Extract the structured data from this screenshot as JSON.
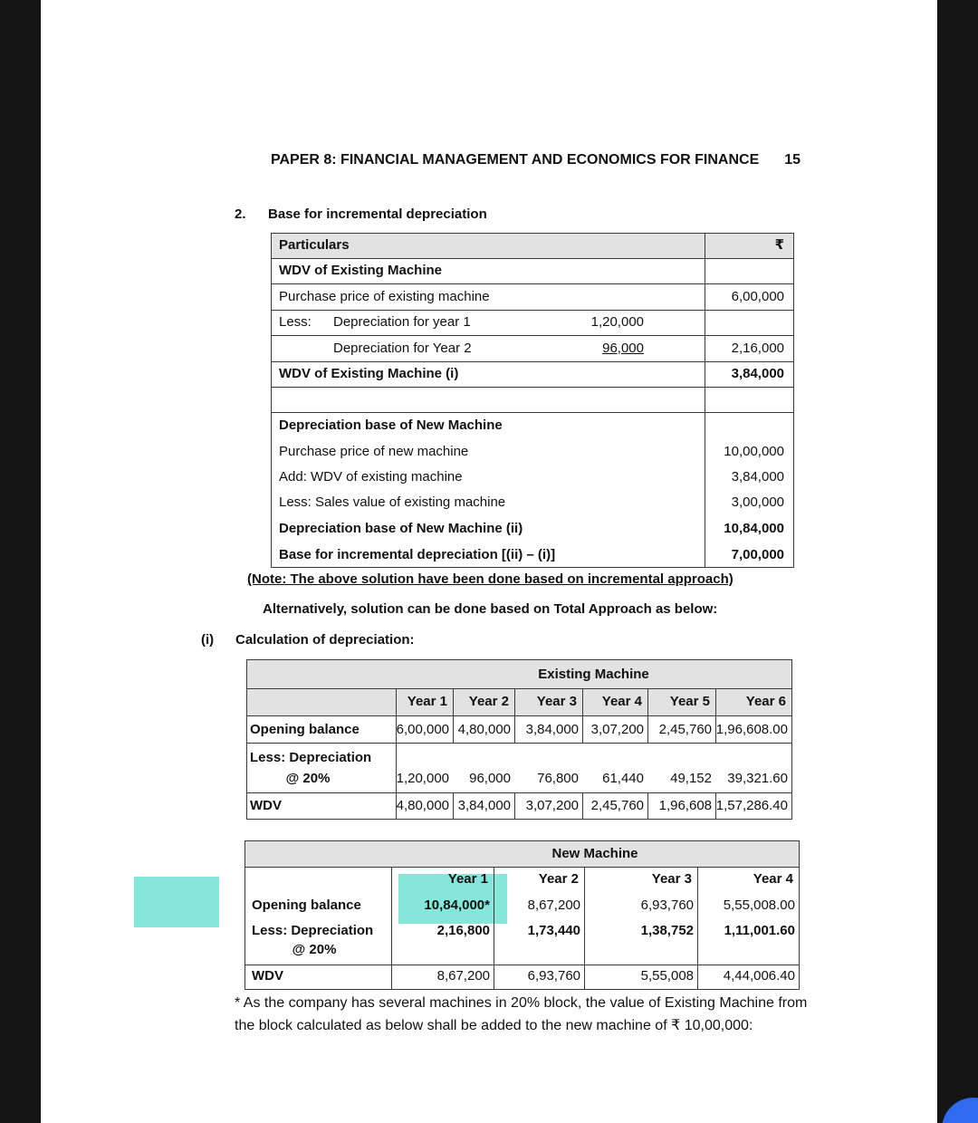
{
  "header": {
    "title": "PAPER 8: FINANCIAL MANAGEMENT AND ECONOMICS FOR FINANCE",
    "page": "15"
  },
  "section2": {
    "number": "2.",
    "heading": "Base for incremental depreciation",
    "table": {
      "header": {
        "label": "Particulars",
        "amount": "₹"
      },
      "rows": [
        {
          "label": "WDV of Existing Machine",
          "bold": true
        },
        {
          "label": "Purchase price of existing machine",
          "amount": "6,00,000"
        },
        {
          "prefix": "Less:",
          "label": "Depreciation for year 1",
          "mid": "1,20,000"
        },
        {
          "label": "Depreciation for Year 2",
          "mid": "96,000",
          "amount": "2,16,000",
          "indent": true,
          "mid_underline": true
        },
        {
          "label": "WDV of Existing Machine (i)",
          "amount": "3,84,000",
          "bold": true
        },
        {
          "label": "Depreciation base of New Machine",
          "bold": true
        },
        {
          "label": "Purchase price of new machine",
          "amount": "10,00,000"
        },
        {
          "label": "Add: WDV of existing machine",
          "amount": "3,84,000"
        },
        {
          "label": "Less: Sales value of existing machine",
          "amount": "3,00,000"
        },
        {
          "label": "Depreciation base of New Machine (ii)",
          "amount": "10,84,000",
          "bold": true
        },
        {
          "label": "Base for incremental depreciation [(ii) – (i)]",
          "amount": "7,00,000",
          "bold": true
        }
      ]
    },
    "note": "(Note: The above solution have been done based on incremental approach)",
    "alternative": "Alternatively, solution can be done based on Total Approach as below:"
  },
  "part_i": {
    "number": "(i)",
    "heading": "Calculation of depreciation:"
  },
  "existing_table": {
    "title": "Existing Machine",
    "years": [
      "Year 1",
      "Year 2",
      "Year 3",
      "Year 4",
      "Year 5",
      "Year 6"
    ],
    "rows": [
      {
        "label": "Opening balance",
        "values": [
          "6,00,000",
          "4,80,000",
          "3,84,000",
          "3,07,200",
          "2,45,760",
          "1,96,608.00"
        ]
      },
      {
        "label": "Less: Depreciation",
        "sublabel": "@ 20%",
        "values": [
          "1,20,000",
          "96,000",
          "76,800",
          "61,440",
          "49,152",
          "39,321.60"
        ]
      },
      {
        "label": "WDV",
        "values": [
          "4,80,000",
          "3,84,000",
          "3,07,200",
          "2,45,760",
          "1,96,608",
          "1,57,286.40"
        ]
      }
    ]
  },
  "new_table": {
    "title": "New Machine",
    "years": [
      "Year 1",
      "Year 2",
      "Year 3",
      "Year 4"
    ],
    "rows": [
      {
        "label": "Opening balance",
        "values": [
          "10,84,000*",
          "8,67,200",
          "6,93,760",
          "5,55,008.00"
        ]
      },
      {
        "label": "Less: Depreciation",
        "sublabel": "@ 20%",
        "values": [
          "2,16,800",
          "1,73,440",
          "1,38,752",
          "1,11,001.60"
        ],
        "bold": true
      },
      {
        "label": "WDV",
        "values": [
          "8,67,200",
          "6,93,760",
          "5,55,008",
          "4,44,006.40"
        ]
      }
    ]
  },
  "footnote": [
    "* As the company has several machines in 20% block, the value of Existing Machine from",
    "the block calculated as below shall be added to the new machine of ₹ 10,00,000:"
  ]
}
